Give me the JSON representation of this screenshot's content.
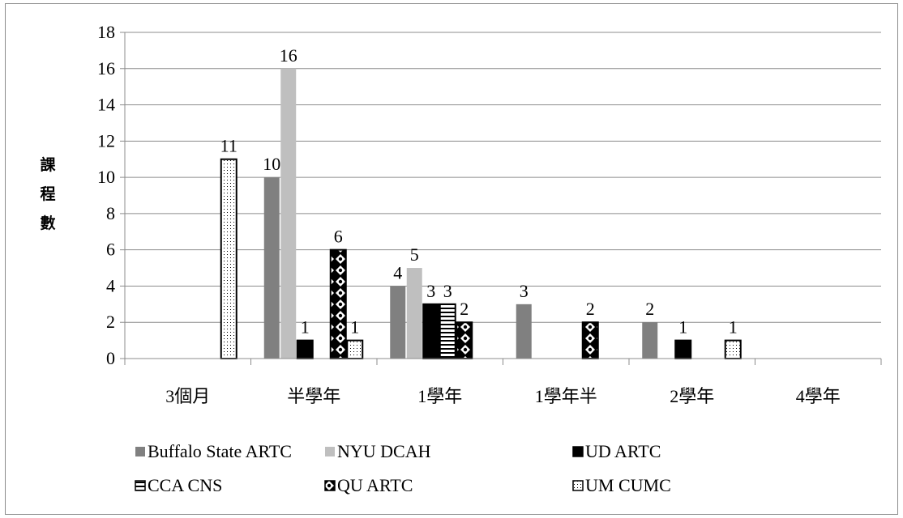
{
  "chart_data": {
    "type": "bar",
    "ylabel": "課程數",
    "xlabel": "",
    "ylim": [
      0,
      18
    ],
    "ytick_step": 2,
    "yticks": [
      "0",
      "2",
      "4",
      "6",
      "8",
      "10",
      "12",
      "14",
      "16",
      "18"
    ],
    "grid": true,
    "legend_position": "bottom",
    "categories": [
      "3個月",
      "半學年",
      "1學年",
      "1學年半",
      "2學年",
      "4學年"
    ],
    "series": [
      {
        "name": "Buffalo State ARTC",
        "color": "#808080",
        "pattern": "solid-gray",
        "values": [
          null,
          10,
          4,
          3,
          2,
          null
        ]
      },
      {
        "name": "NYU DCAH",
        "color": "#bfbfbf",
        "pattern": "solid-lightgray",
        "values": [
          null,
          16,
          5,
          null,
          null,
          null
        ]
      },
      {
        "name": "UD ARTC",
        "color": "#000000",
        "pattern": "solid-black",
        "values": [
          null,
          1,
          3,
          null,
          1,
          null
        ]
      },
      {
        "name": "CCA CNS",
        "color": "#000000",
        "pattern": "horizontal-stripes",
        "values": [
          null,
          null,
          3,
          null,
          null,
          null
        ]
      },
      {
        "name": "QU ARTC",
        "color": "#000000",
        "pattern": "diamond-checker",
        "values": [
          null,
          6,
          2,
          2,
          null,
          null
        ]
      },
      {
        "name": "UM CUMC",
        "color": "#000000",
        "pattern": "dotted",
        "values": [
          11,
          1,
          null,
          null,
          1,
          null
        ]
      }
    ]
  }
}
